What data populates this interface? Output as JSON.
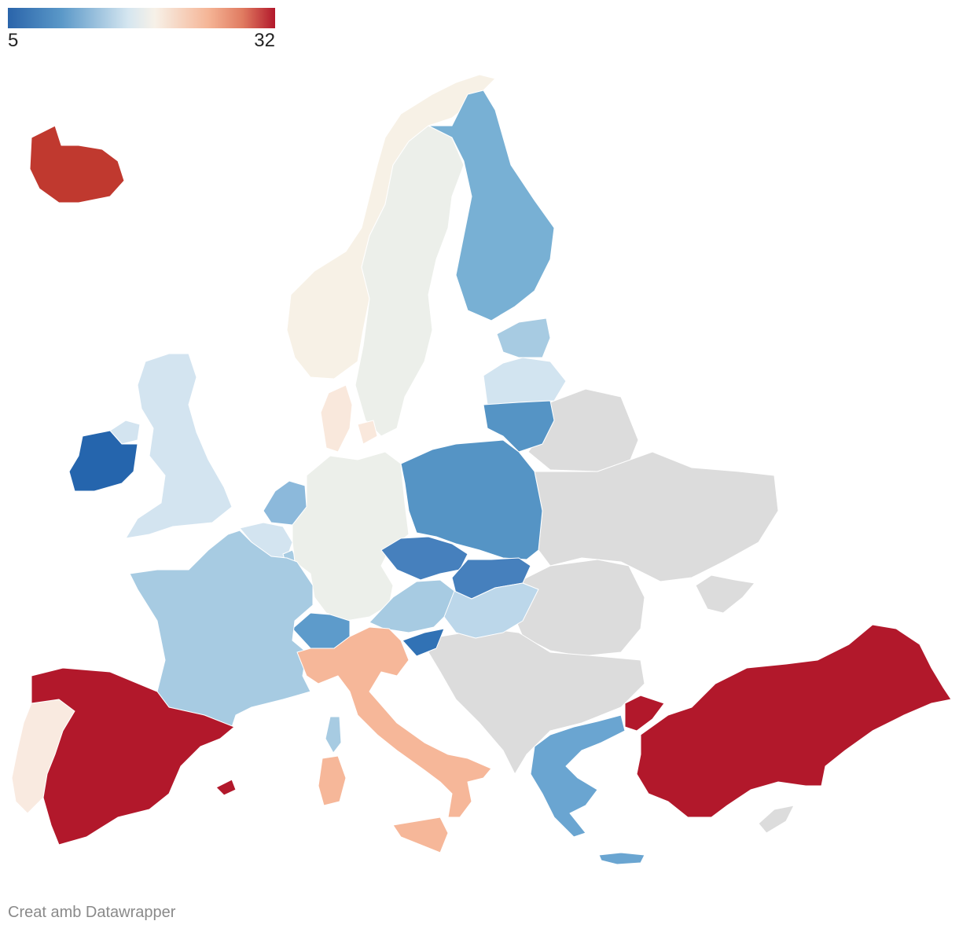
{
  "legend": {
    "min_label": "5",
    "max_label": "32",
    "min_value": 5,
    "max_value": 32,
    "colors": [
      "#2a64aa",
      "#5a98c8",
      "#d5e6f0",
      "#f7f1e8",
      "#f5b596",
      "#e07a60",
      "#b2182b"
    ]
  },
  "no_data_color": "#dcdcdc",
  "credit": "Creat amb Datawrapper",
  "map_data": {
    "type": "choropleth",
    "regions": [
      {
        "name": "Iceland",
        "color": "#c0392f"
      },
      {
        "name": "Norway",
        "color": "#f7f1e6"
      },
      {
        "name": "Sweden",
        "color": "#ecefea"
      },
      {
        "name": "Finland",
        "color": "#78b0d4"
      },
      {
        "name": "Estonia",
        "color": "#a7cbe2"
      },
      {
        "name": "Latvia",
        "color": "#d2e4f0"
      },
      {
        "name": "Lithuania",
        "color": "#5594c5"
      },
      {
        "name": "Denmark",
        "color": "#f9e8dc"
      },
      {
        "name": "Ireland",
        "color": "#2565ad"
      },
      {
        "name": "United Kingdom",
        "color": "#d3e4f0"
      },
      {
        "name": "Netherlands",
        "color": "#8cb9db"
      },
      {
        "name": "Belgium",
        "color": "#d3e4f0"
      },
      {
        "name": "Luxembourg",
        "color": "#a7cbe2"
      },
      {
        "name": "Germany",
        "color": "#ecefea"
      },
      {
        "name": "Poland",
        "color": "#5594c5"
      },
      {
        "name": "Czechia",
        "color": "#4680bd"
      },
      {
        "name": "Slovakia",
        "color": "#4680bd"
      },
      {
        "name": "Austria",
        "color": "#a7cbe2"
      },
      {
        "name": "Hungary",
        "color": "#bcd7ea"
      },
      {
        "name": "Switzerland",
        "color": "#5d9bcb"
      },
      {
        "name": "Slovenia",
        "color": "#3172b5"
      },
      {
        "name": "France",
        "color": "#a7cbe2"
      },
      {
        "name": "Italy",
        "color": "#f6b799"
      },
      {
        "name": "Spain",
        "color": "#b2182b"
      },
      {
        "name": "Portugal",
        "color": "#f9eae0"
      },
      {
        "name": "Greece",
        "color": "#6aa5d1"
      },
      {
        "name": "Turkey",
        "color": "#b2182b"
      }
    ]
  }
}
